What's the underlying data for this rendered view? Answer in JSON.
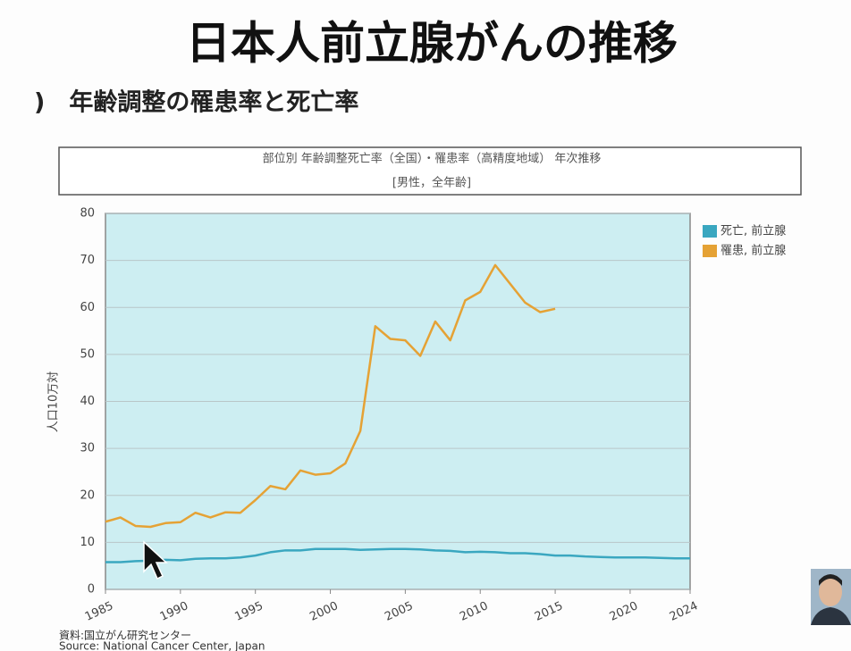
{
  "header": {
    "title": "日本人前立腺がんの推移",
    "subtitle": ")　年齢調整の罹患率と死亡率"
  },
  "chart_data": {
    "type": "line",
    "title": "部位別 年齢調整死亡率（全国）・罹患率（高精度地域） 年次推移",
    "subtitle": "[男性，全年齢]",
    "y_label": "人口10万対",
    "source": [
      "資料:国立がん研究センター",
      "Source: National Cancer Center, Japan"
    ],
    "x": [
      1985,
      1986,
      1987,
      1988,
      1989,
      1990,
      1991,
      1992,
      1993,
      1994,
      1995,
      1996,
      1997,
      1998,
      1999,
      2000,
      2001,
      2002,
      2003,
      2004,
      2005,
      2006,
      2007,
      2008,
      2009,
      2010,
      2011,
      2012,
      2013,
      2014,
      2015,
      2016,
      2017,
      2018,
      2019,
      2020,
      2021,
      2022,
      2023,
      2024
    ],
    "series": [
      {
        "name": "死亡, 前立腺",
        "color": "#3aa7c0",
        "values": [
          5.8,
          5.8,
          6.0,
          6.1,
          6.3,
          6.2,
          6.5,
          6.6,
          6.6,
          6.8,
          7.2,
          7.9,
          8.3,
          8.3,
          8.6,
          8.6,
          8.6,
          8.4,
          8.5,
          8.6,
          8.6,
          8.5,
          8.3,
          8.2,
          7.9,
          8.0,
          7.9,
          7.7,
          7.7,
          7.5,
          7.2,
          7.2,
          7.0,
          6.9,
          6.8,
          6.8,
          6.8,
          6.7,
          6.6,
          6.6
        ]
      },
      {
        "name": "罹患, 前立腺",
        "color": "#e5a235",
        "values": [
          14.4,
          15.3,
          13.5,
          13.3,
          14.1,
          14.3,
          16.3,
          15.3,
          16.4,
          16.3,
          19.0,
          22.0,
          21.3,
          25.3,
          24.4,
          24.7,
          26.8,
          33.7,
          56.0,
          53.3,
          53.0,
          49.7,
          57.0,
          53.0,
          61.5,
          63.3,
          69.0,
          65.0,
          61.0,
          59.0,
          59.7,
          null,
          null,
          null,
          null,
          null,
          null,
          null,
          null,
          null
        ]
      }
    ],
    "xlim": [
      1985,
      2024
    ],
    "xticks": [
      1985,
      1990,
      1995,
      2000,
      2005,
      2010,
      2015,
      2020,
      2024
    ],
    "ylim": [
      0,
      80
    ],
    "yticks": [
      0,
      10,
      20,
      30,
      40,
      50,
      60,
      70,
      80
    ],
    "grid": true,
    "legend": "right"
  }
}
